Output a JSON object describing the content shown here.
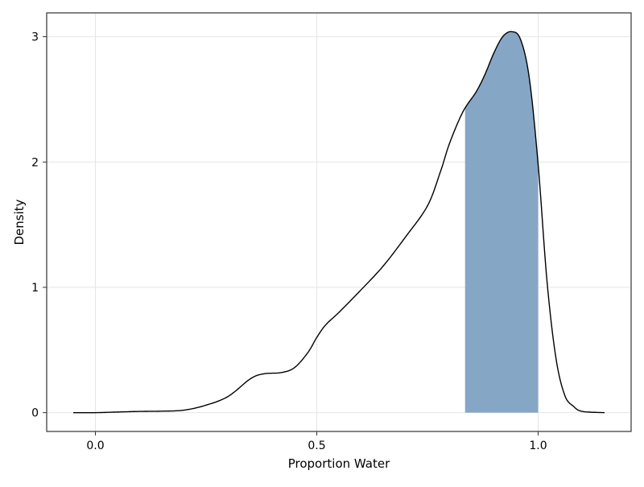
{
  "chart_data": {
    "type": "area",
    "title": "",
    "xlabel": "Proportion Water",
    "ylabel": "Density",
    "xlim": [
      -0.11,
      1.21
    ],
    "ylim": [
      -0.15,
      3.19
    ],
    "x_ticks": [
      0.0,
      0.5,
      1.0
    ],
    "x_tick_labels": [
      "0.0",
      "0.5",
      "1.0"
    ],
    "y_ticks": [
      0,
      1,
      2,
      3
    ],
    "y_tick_labels": [
      "0",
      "1",
      "2",
      "3"
    ],
    "grid": true,
    "colors": {
      "line": "#000000",
      "fill": "#86a6c6",
      "grid": "#e6e6e6",
      "frame": "#333333"
    },
    "series": [
      {
        "x": [
          -0.05,
          0.0,
          0.05,
          0.1,
          0.15,
          0.2,
          0.25,
          0.3,
          0.35,
          0.38,
          0.42,
          0.45,
          0.48,
          0.5,
          0.52,
          0.55,
          0.6,
          0.65,
          0.7,
          0.75,
          0.78,
          0.8,
          0.83,
          0.86,
          0.88,
          0.9,
          0.92,
          0.94,
          0.96,
          0.98,
          1.0,
          1.02,
          1.04,
          1.06,
          1.08,
          1.1,
          1.15
        ],
        "y": [
          0.0,
          0.0,
          0.005,
          0.01,
          0.012,
          0.02,
          0.06,
          0.13,
          0.27,
          0.31,
          0.32,
          0.36,
          0.48,
          0.6,
          0.7,
          0.8,
          0.98,
          1.17,
          1.4,
          1.65,
          1.93,
          2.15,
          2.4,
          2.56,
          2.7,
          2.87,
          3.0,
          3.04,
          2.98,
          2.67,
          1.98,
          1.05,
          0.44,
          0.14,
          0.05,
          0.01,
          0.0
        ]
      }
    ],
    "shaded_interval": [
      0.835,
      1.0
    ]
  }
}
